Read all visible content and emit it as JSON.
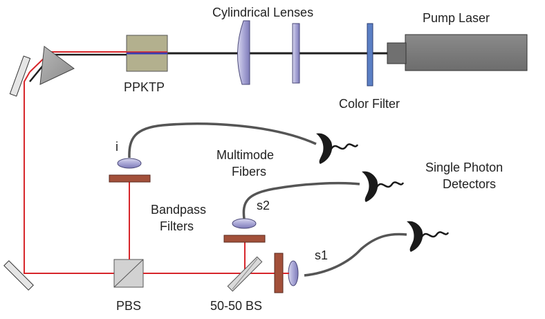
{
  "labels": {
    "cylindrical_lenses": "Cylindrical Lenses",
    "pump_laser": "Pump Laser",
    "ppktp": "PPKTP",
    "color_filter": "Color Filter",
    "idler": "i",
    "multimode_fibers_line1": "Multimode",
    "multimode_fibers_line2": "Fibers",
    "single_photon_line1": "Single Photon",
    "single_photon_line2": "Detectors",
    "bandpass_line1": "Bandpass",
    "bandpass_line2": "Filters",
    "s2": "s2",
    "s1": "s1",
    "pbs": "PBS",
    "bs_5050": "50-50 BS"
  },
  "colors": {
    "beam": "#d7262b",
    "pump_beam": "#1f1f1f",
    "fiber": "#555555",
    "laser_body": "#7b7b7b",
    "crystal": "#b3b08e",
    "lens": "#9c9ac9",
    "color_filter": "#5b7fc4",
    "bandpass": "#a2503a",
    "mirror": "#d9d9d9",
    "prism": "#9a9a9a",
    "detector": "#1a1a1a"
  },
  "icons": {
    "detector": "detector-icon",
    "lens": "lens-icon",
    "mirror": "mirror-icon"
  }
}
